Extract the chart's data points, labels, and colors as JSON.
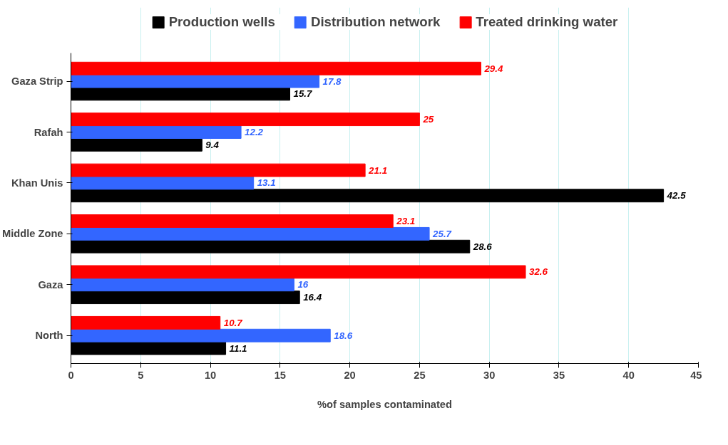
{
  "chart_data": {
    "type": "bar",
    "orientation": "horizontal",
    "xlabel": "%of samples contaminated",
    "categories": [
      "Gaza Strip",
      "Rafah",
      "Khan Unis",
      "Middle Zone",
      "Gaza",
      "North"
    ],
    "series": [
      {
        "name": "Production wells",
        "color": "#000000",
        "values": [
          15.7,
          9.4,
          42.5,
          28.6,
          16.4,
          11.1
        ]
      },
      {
        "name": "Distribution network",
        "color": "#3366ff",
        "values": [
          17.8,
          12.2,
          13.1,
          25.7,
          16,
          18.6
        ]
      },
      {
        "name": "Treated drinking water",
        "color": "#ff0000",
        "values": [
          29.4,
          25,
          21.1,
          23.1,
          32.6,
          10.7
        ]
      }
    ],
    "xlim": [
      0,
      45
    ],
    "xticks": [
      0,
      5,
      10,
      15,
      20,
      25,
      30,
      35,
      40,
      45
    ],
    "grid": "x",
    "legend": "top",
    "data_labels": true
  }
}
